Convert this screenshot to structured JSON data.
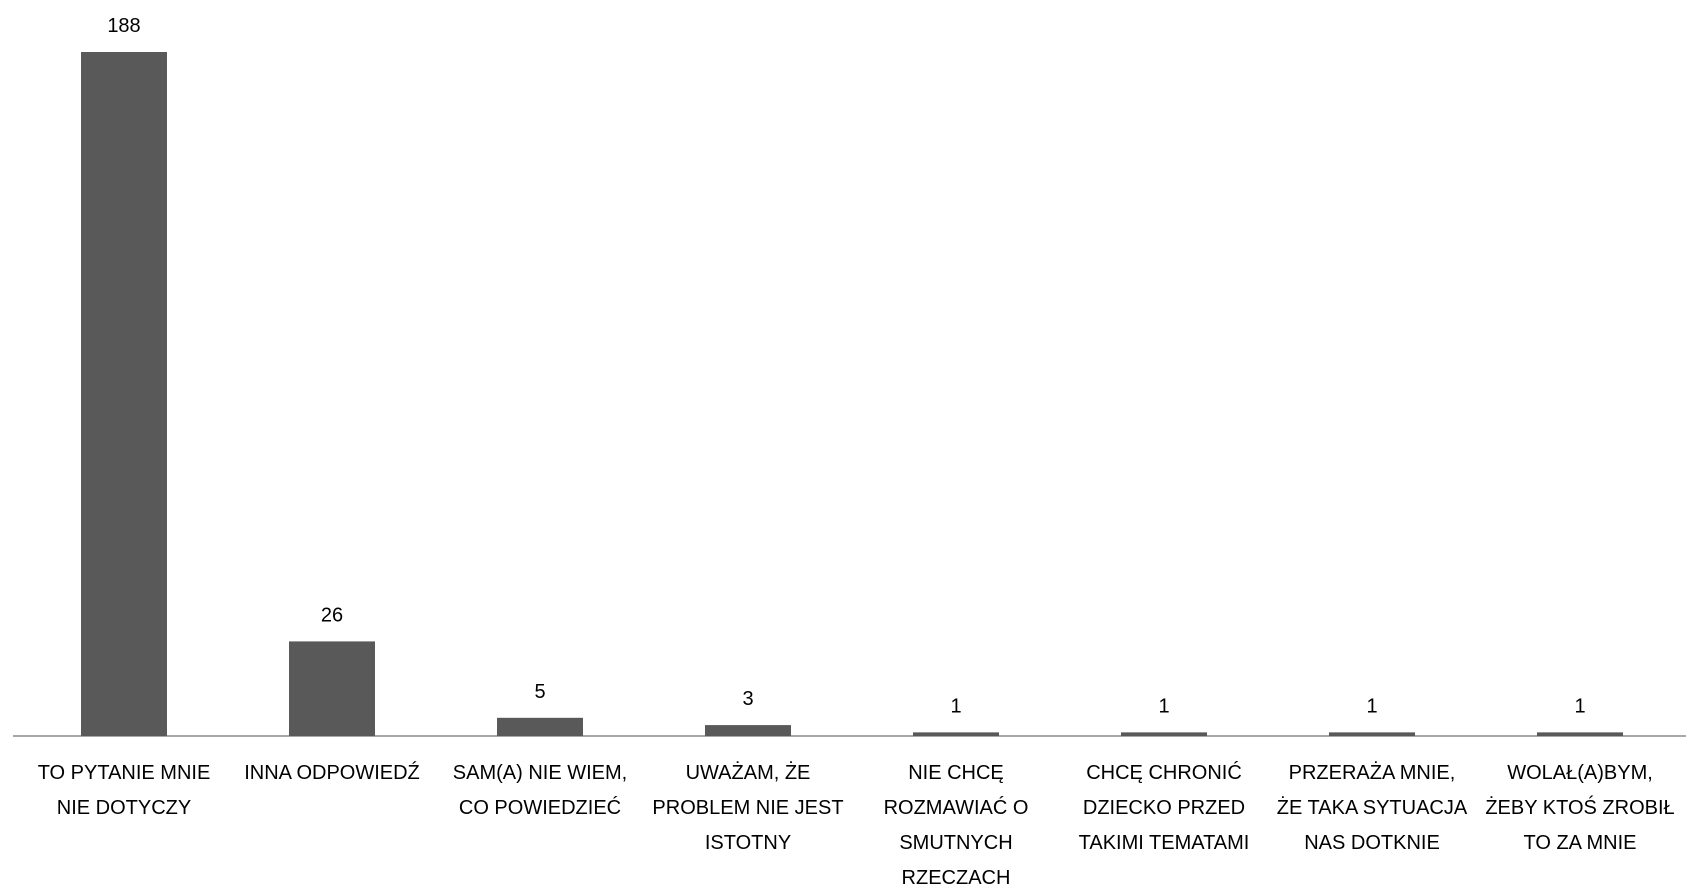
{
  "chart_data": {
    "type": "bar",
    "categories": [
      "TO PYTANIE MNIE NIE DOTYCZY",
      "INNA ODPOWIEDŹ",
      "SAM(A) NIE WIEM, CO POWIEDZIEĆ",
      "UWAŻAM, ŻE PROBLEM NIE JEST ISTOTNY",
      "NIE CHCĘ ROZMAWIAĆ O SMUTNYCH RZECZACH",
      "CHCĘ CHRONIĆ DZIECKO PRZED TAKIMI TEMATAMI",
      "PRZERAŻA MNIE, ŻE TAKA SYTUACJA NAS DOTKNIE",
      "WOLAŁ(A)BYM, ŻEBY KTOŚ ZROBIŁ TO ZA MNIE"
    ],
    "values": [
      188,
      26,
      5,
      3,
      1,
      1,
      1,
      1
    ],
    "color": "#595959"
  }
}
